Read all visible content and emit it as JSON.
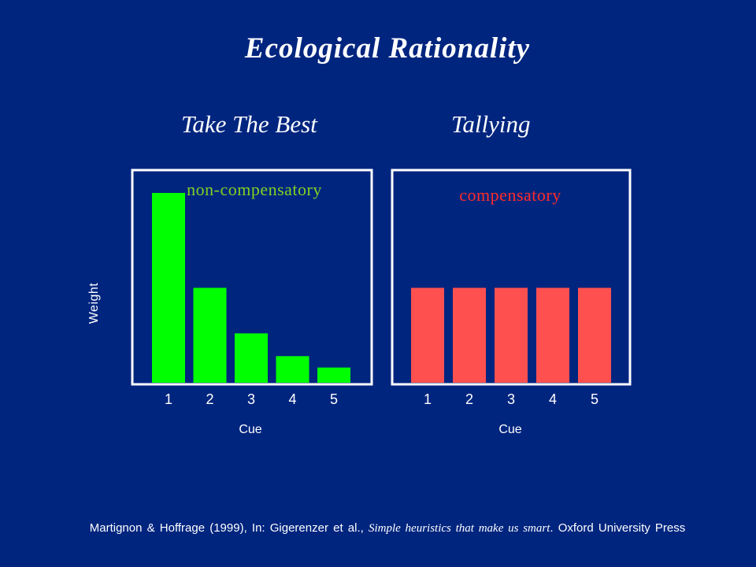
{
  "title": "Ecological Rationality",
  "colors": {
    "background": "#00257f",
    "non_compensatory_bars": "#00ff00",
    "compensatory_bars": "#ff5050",
    "non_compensatory_label": "#7ed321",
    "compensatory_label": "#ff2a2a"
  },
  "chart_data": [
    {
      "type": "bar",
      "title": "Take The Best",
      "annotation": "non-compensatory",
      "categories": [
        "1",
        "2",
        "3",
        "4",
        "5"
      ],
      "values": [
        1,
        0.5,
        0.26,
        0.14,
        0.08
      ],
      "xlabel": "Cue",
      "ylabel": "Weight",
      "ylim": [
        0,
        1.1
      ],
      "grid": false
    },
    {
      "type": "bar",
      "title": "Tallying",
      "annotation": "compensatory",
      "categories": [
        "1",
        "2",
        "3",
        "4",
        "5"
      ],
      "values": [
        0.5,
        0.5,
        0.5,
        0.5,
        0.5
      ],
      "xlabel": "Cue",
      "ylabel": "",
      "ylim": [
        0,
        1.1
      ],
      "grid": false
    }
  ],
  "footer": {
    "authors": "Martignon & Hoffrage (1999), In: Gigerenzer et al.,",
    "book": "Simple heuristics that make us smart",
    "publisher": ". Oxford University Press"
  }
}
